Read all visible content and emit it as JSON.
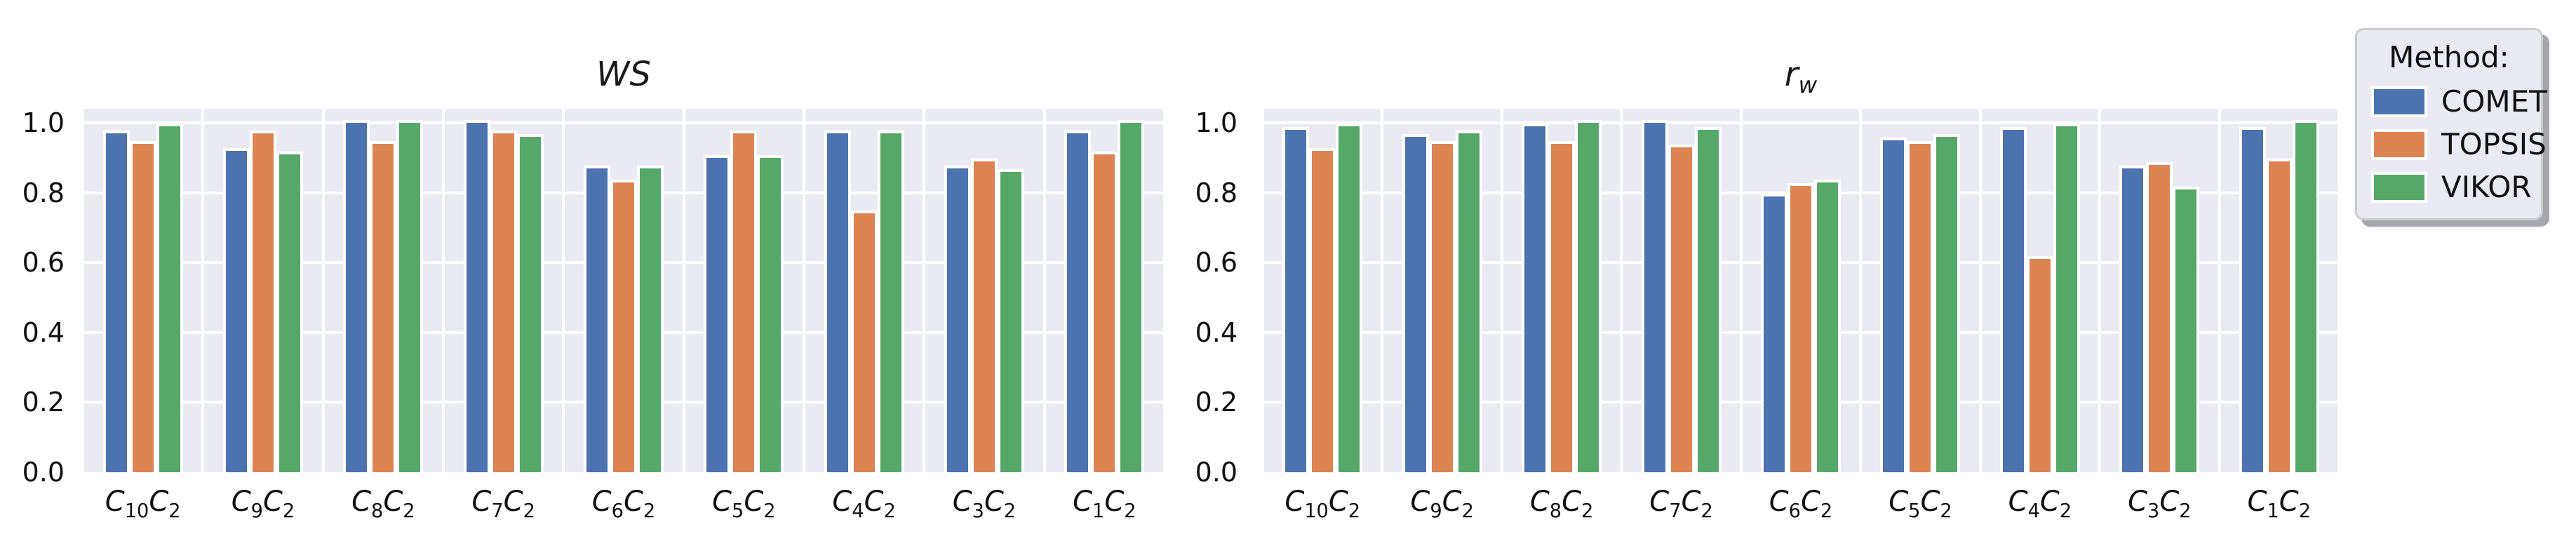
{
  "figure": {
    "background": "#ffffff"
  },
  "style": {
    "plot_background": "#eaeaf2",
    "grid_color": "#ffffff",
    "text_color": "#111111",
    "series_colors": {
      "COMET": "#4c72b0",
      "TOPSIS": "#dd8452",
      "VIKOR": "#55a868"
    },
    "legend_border": "#cccccc"
  },
  "legend": {
    "title": "Method:",
    "position": "top-right-outside",
    "entries": [
      {
        "label": "COMET",
        "color": "#4c72b0"
      },
      {
        "label": "TOPSIS",
        "color": "#dd8452"
      },
      {
        "label": "VIKOR",
        "color": "#55a868"
      }
    ]
  },
  "chart_data": [
    {
      "type": "bar",
      "title": {
        "main": "WS",
        "sub": ""
      },
      "xlabel": "",
      "ylabel": "",
      "grid": true,
      "ylim": [
        0,
        1.04
      ],
      "yticks": [
        "0.0",
        "0.2",
        "0.4",
        "0.6",
        "0.8",
        "1.0"
      ],
      "categories_text": [
        "C10C2",
        "C9C2",
        "C8C2",
        "C7C2",
        "C6C2",
        "C5C2",
        "C4C2",
        "C3C2",
        "C1C2"
      ],
      "categories": [
        [
          [
            "C",
            "10"
          ],
          [
            "C",
            "2"
          ]
        ],
        [
          [
            "C",
            "9"
          ],
          [
            "C",
            "2"
          ]
        ],
        [
          [
            "C",
            "8"
          ],
          [
            "C",
            "2"
          ]
        ],
        [
          [
            "C",
            "7"
          ],
          [
            "C",
            "2"
          ]
        ],
        [
          [
            "C",
            "6"
          ],
          [
            "C",
            "2"
          ]
        ],
        [
          [
            "C",
            "5"
          ],
          [
            "C",
            "2"
          ]
        ],
        [
          [
            "C",
            "4"
          ],
          [
            "C",
            "2"
          ]
        ],
        [
          [
            "C",
            "3"
          ],
          [
            "C",
            "2"
          ]
        ],
        [
          [
            "C",
            "1"
          ],
          [
            "C",
            "2"
          ]
        ]
      ],
      "series": [
        {
          "name": "COMET",
          "color": "#4c72b0",
          "values": [
            0.97,
            0.92,
            1.0,
            1.0,
            0.87,
            0.9,
            0.97,
            0.87,
            0.97
          ]
        },
        {
          "name": "TOPSIS",
          "color": "#dd8452",
          "values": [
            0.94,
            0.97,
            0.94,
            0.97,
            0.83,
            0.97,
            0.74,
            0.89,
            0.91
          ]
        },
        {
          "name": "VIKOR",
          "color": "#55a868",
          "values": [
            0.99,
            0.91,
            1.0,
            0.96,
            0.87,
            0.9,
            0.97,
            0.86,
            1.0
          ]
        }
      ]
    },
    {
      "type": "bar",
      "title": {
        "main": "r",
        "sub": "w"
      },
      "xlabel": "",
      "ylabel": "",
      "grid": true,
      "ylim": [
        0,
        1.04
      ],
      "yticks": [
        "0.0",
        "0.2",
        "0.4",
        "0.6",
        "0.8",
        "1.0"
      ],
      "categories_text": [
        "C10C2",
        "C9C2",
        "C8C2",
        "C7C2",
        "C6C2",
        "C5C2",
        "C4C2",
        "C3C2",
        "C1C2"
      ],
      "categories": [
        [
          [
            "C",
            "10"
          ],
          [
            "C",
            "2"
          ]
        ],
        [
          [
            "C",
            "9"
          ],
          [
            "C",
            "2"
          ]
        ],
        [
          [
            "C",
            "8"
          ],
          [
            "C",
            "2"
          ]
        ],
        [
          [
            "C",
            "7"
          ],
          [
            "C",
            "2"
          ]
        ],
        [
          [
            "C",
            "6"
          ],
          [
            "C",
            "2"
          ]
        ],
        [
          [
            "C",
            "5"
          ],
          [
            "C",
            "2"
          ]
        ],
        [
          [
            "C",
            "4"
          ],
          [
            "C",
            "2"
          ]
        ],
        [
          [
            "C",
            "3"
          ],
          [
            "C",
            "2"
          ]
        ],
        [
          [
            "C",
            "1"
          ],
          [
            "C",
            "2"
          ]
        ]
      ],
      "series": [
        {
          "name": "COMET",
          "color": "#4c72b0",
          "values": [
            0.98,
            0.96,
            0.99,
            1.0,
            0.79,
            0.95,
            0.98,
            0.87,
            0.98
          ]
        },
        {
          "name": "TOPSIS",
          "color": "#dd8452",
          "values": [
            0.92,
            0.94,
            0.94,
            0.93,
            0.82,
            0.94,
            0.61,
            0.88,
            0.89
          ]
        },
        {
          "name": "VIKOR",
          "color": "#55a868",
          "values": [
            0.99,
            0.97,
            1.0,
            0.98,
            0.83,
            0.96,
            0.99,
            0.81,
            1.0
          ]
        }
      ]
    }
  ]
}
